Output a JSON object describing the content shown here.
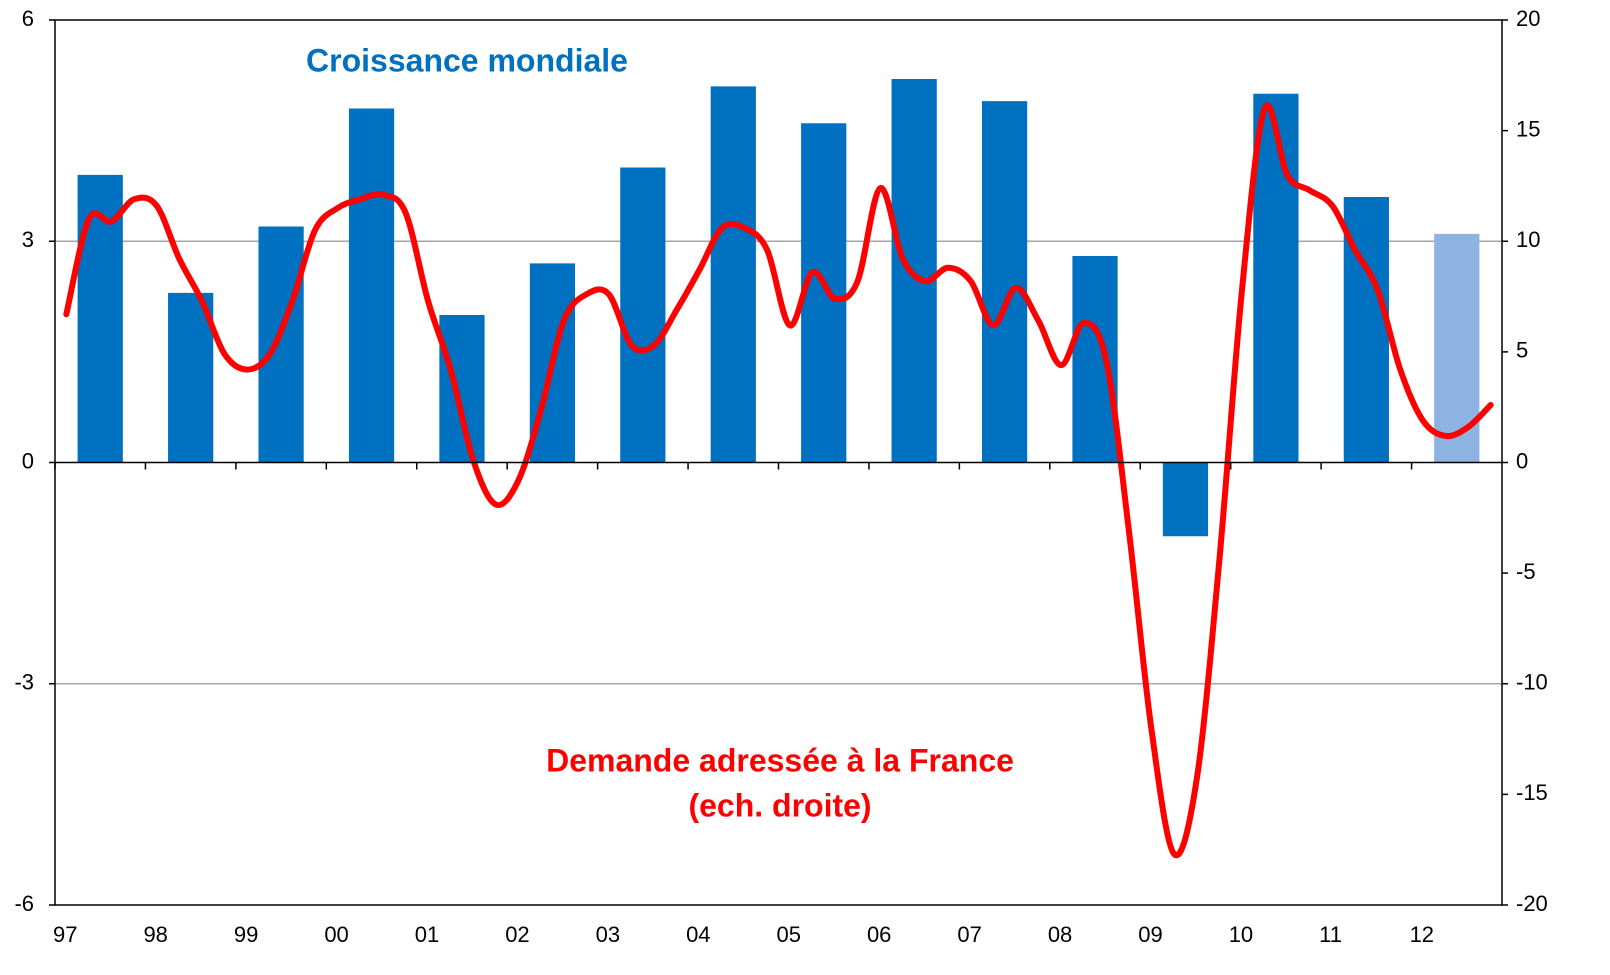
{
  "chart_data": {
    "type": "bar+line",
    "xlim": [
      1997,
      2013
    ],
    "xticks": [
      {
        "value": 1997,
        "label": "97"
      },
      {
        "value": 1998,
        "label": "98"
      },
      {
        "value": 1999,
        "label": "99"
      },
      {
        "value": 2000,
        "label": "00"
      },
      {
        "value": 2001,
        "label": "01"
      },
      {
        "value": 2002,
        "label": "02"
      },
      {
        "value": 2003,
        "label": "03"
      },
      {
        "value": 2004,
        "label": "04"
      },
      {
        "value": 2005,
        "label": "05"
      },
      {
        "value": 2006,
        "label": "06"
      },
      {
        "value": 2007,
        "label": "07"
      },
      {
        "value": 2008,
        "label": "08"
      },
      {
        "value": 2009,
        "label": "09"
      },
      {
        "value": 2010,
        "label": "10"
      },
      {
        "value": 2011,
        "label": "11"
      },
      {
        "value": 2012,
        "label": "12"
      }
    ],
    "ylim": [
      -6,
      6
    ],
    "yticks": [
      -6,
      -3,
      0,
      3,
      6
    ],
    "y2lim": [
      -20,
      20
    ],
    "y2ticks": [
      -20,
      -15,
      -10,
      -5,
      0,
      5,
      10,
      15,
      20
    ],
    "grid": true,
    "series": [
      {
        "name": "Croissance mondiale",
        "type": "bar",
        "color": "#0070c0",
        "colors": [
          "#0070c0",
          "#0070c0",
          "#0070c0",
          "#0070c0",
          "#0070c0",
          "#0070c0",
          "#0070c0",
          "#0070c0",
          "#0070c0",
          "#0070c0",
          "#0070c0",
          "#0070c0",
          "#0070c0",
          "#0070c0",
          "#0070c0",
          "#8db3e2"
        ],
        "x": [
          1997.5,
          1998.5,
          1999.5,
          2000.5,
          2001.5,
          2002.5,
          2003.5,
          2004.5,
          2005.5,
          2006.5,
          2007.5,
          2008.5,
          2009.5,
          2010.5,
          2011.5,
          2012.5
        ],
        "values": [
          3.9,
          2.3,
          3.2,
          4.8,
          2.0,
          2.7,
          4.0,
          5.1,
          4.6,
          5.2,
          4.9,
          2.8,
          -1.0,
          5.0,
          3.6,
          3.1
        ]
      },
      {
        "name": "Demande adressée à la France",
        "type": "line",
        "axis": "y2",
        "color": "#ff0000",
        "x": [
          1997.125,
          1997.375,
          1997.625,
          1997.875,
          1998.125,
          1998.375,
          1998.625,
          1998.875,
          1999.125,
          1999.375,
          1999.625,
          1999.875,
          2000.125,
          2000.375,
          2000.625,
          2000.875,
          2001.125,
          2001.375,
          2001.625,
          2001.875,
          2002.125,
          2002.375,
          2002.625,
          2002.875,
          2003.125,
          2003.375,
          2003.625,
          2003.875,
          2004.125,
          2004.375,
          2004.625,
          2004.875,
          2005.125,
          2005.375,
          2005.625,
          2005.875,
          2006.125,
          2006.375,
          2006.625,
          2006.875,
          2007.125,
          2007.375,
          2007.625,
          2007.875,
          2008.125,
          2008.375,
          2008.625,
          2008.875,
          2009.125,
          2009.375,
          2009.625,
          2009.875,
          2010.125,
          2010.375,
          2010.625,
          2010.875,
          2011.125,
          2011.375,
          2011.625,
          2011.875,
          2012.125,
          2012.375,
          2012.625,
          2012.875
        ],
        "values": [
          6.7,
          11.0,
          10.9,
          11.9,
          11.6,
          9.2,
          7.3,
          4.9,
          4.2,
          4.9,
          7.3,
          10.5,
          11.5,
          11.9,
          12.1,
          11.3,
          7.3,
          4.2,
          0.1,
          -1.9,
          -0.8,
          2.4,
          6.4,
          7.6,
          7.6,
          5.3,
          5.3,
          6.9,
          8.7,
          10.6,
          10.6,
          9.6,
          6.2,
          8.6,
          7.4,
          8.2,
          12.4,
          9.2,
          8.2,
          8.8,
          8.2,
          6.2,
          7.9,
          6.4,
          4.4,
          6.3,
          4.6,
          -3.1,
          -12.1,
          -17.7,
          -14.3,
          -4.4,
          7.8,
          16.0,
          13.0,
          12.3,
          11.6,
          9.6,
          7.8,
          4.2,
          1.9,
          1.2,
          1.6,
          2.6
        ]
      }
    ],
    "annotations": [
      "(ech. droite)"
    ]
  }
}
